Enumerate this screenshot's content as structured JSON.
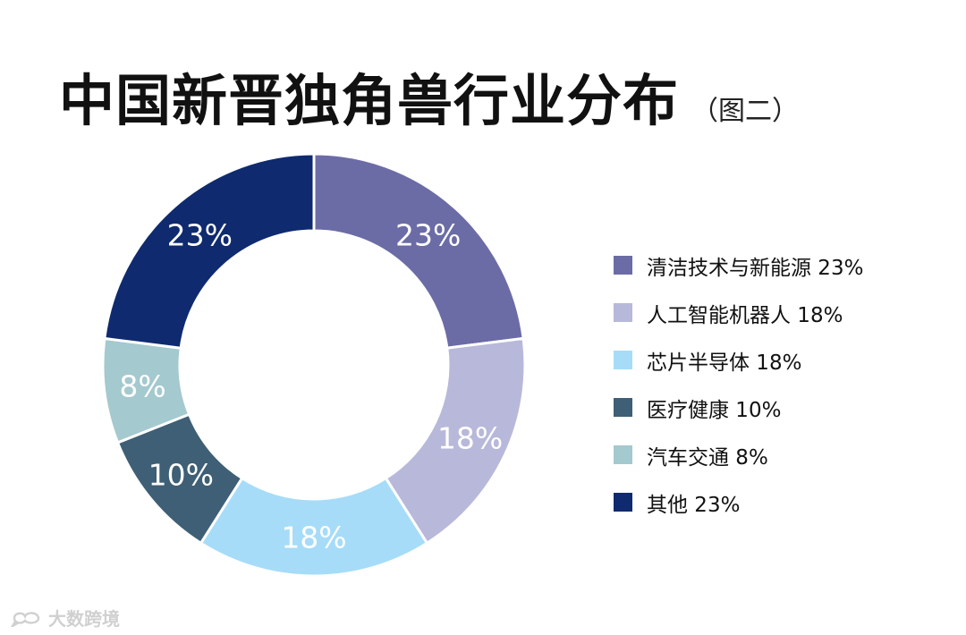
{
  "header": {
    "title": "中国新晋独角兽行业分布",
    "subtitle": "（图二）"
  },
  "chart_data": {
    "type": "pie",
    "donut": true,
    "categories": [
      "清洁技术与新能源",
      "人工智能机器人",
      "芯片半导体",
      "医疗健康",
      "汽车交通",
      "其他"
    ],
    "values": [
      23,
      18,
      18,
      10,
      8,
      23
    ],
    "slice_labels": [
      "23%",
      "18%",
      "18%",
      "10%",
      "8%",
      "23%"
    ],
    "colors": [
      "#6b6ca6",
      "#b8b8da",
      "#a6dcf8",
      "#3e5f75",
      "#a4c9ce",
      "#0f2a6e"
    ],
    "legend": {
      "placement": "right",
      "entries": [
        {
          "label": "清洁技术与新能源  23%",
          "color": "#6b6ca6"
        },
        {
          "label": "人工智能机器人 18%",
          "color": "#b8b8da"
        },
        {
          "label": "芯片半导体  18%",
          "color": "#a6dcf8"
        },
        {
          "label": "医疗健康  10%",
          "color": "#3e5f75"
        },
        {
          "label": "汽车交通  8%",
          "color": "#a4c9ce"
        },
        {
          "label": "其他  23%",
          "color": "#0f2a6e"
        }
      ]
    }
  },
  "watermark": {
    "text": "大数跨境",
    "logo_icon": "speech-bubble-logo-icon"
  }
}
